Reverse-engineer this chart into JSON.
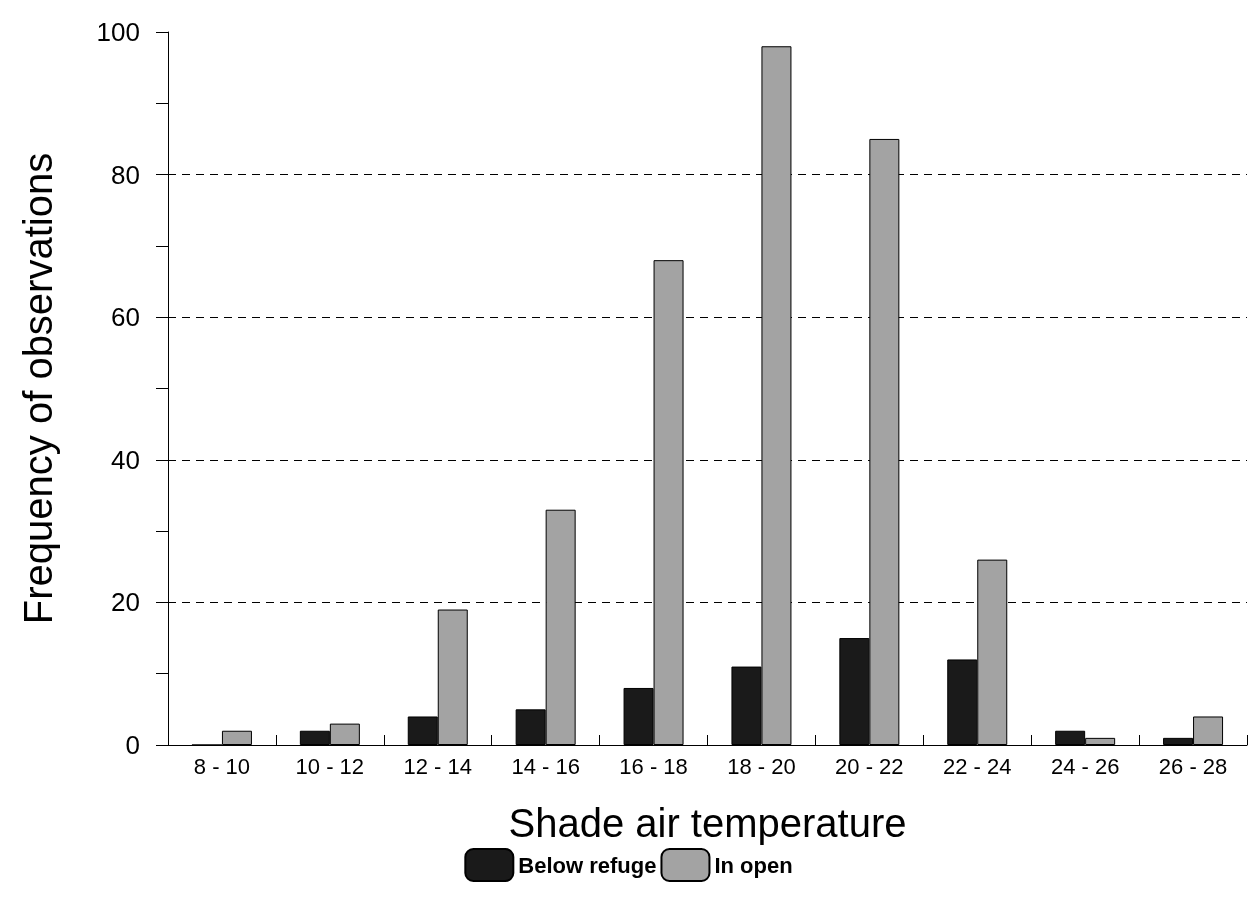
{
  "chart_data": {
    "type": "bar",
    "xlabel": "Shade air temperature",
    "ylabel": "Frequency of observations",
    "categories": [
      "8 - 10",
      "10 - 12",
      "12 - 14",
      "14 - 16",
      "16 - 18",
      "18 - 20",
      "20 - 22",
      "22 - 24",
      "24 - 26",
      "26 - 28"
    ],
    "series": [
      {
        "name": "Below refuge",
        "color": "#1a1a1a",
        "values": [
          0,
          2,
          4,
          5,
          8,
          11,
          15,
          12,
          2,
          1
        ]
      },
      {
        "name": "In open",
        "color": "#a3a3a3",
        "values": [
          2,
          3,
          19,
          33,
          68,
          98,
          85,
          26,
          1,
          4
        ]
      }
    ],
    "ylim": [
      0,
      100
    ],
    "yticks": [
      0,
      {
        "value": 10,
        "label": null
      },
      20,
      {
        "value": 30,
        "label": null
      },
      40,
      {
        "value": 50,
        "label": null
      },
      60,
      {
        "value": 70,
        "label": null
      },
      80,
      {
        "value": 90,
        "label": null
      },
      100
    ],
    "grid": "y",
    "legend": "bottom"
  }
}
